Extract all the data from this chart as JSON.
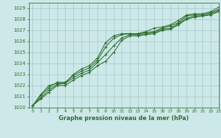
{
  "title": "Graphe pression niveau de la mer (hPa)",
  "bg_color": "#cce8e8",
  "grid_color": "#aacccc",
  "line_color": "#2d6e2d",
  "xlim": [
    -0.5,
    23
  ],
  "ylim": [
    1020,
    1029.5
  ],
  "xticks": [
    0,
    1,
    2,
    3,
    4,
    5,
    6,
    7,
    8,
    9,
    10,
    11,
    12,
    13,
    14,
    15,
    16,
    17,
    18,
    19,
    20,
    21,
    22,
    23
  ],
  "yticks": [
    1020,
    1021,
    1022,
    1023,
    1024,
    1025,
    1026,
    1027,
    1028,
    1029
  ],
  "series": [
    [
      1020.2,
      1020.8,
      1021.4,
      1022.0,
      1022.0,
      1022.5,
      1022.9,
      1023.2,
      1023.8,
      1024.2,
      1025.0,
      1026.1,
      1026.5,
      1026.5,
      1026.6,
      1026.7,
      1027.0,
      1027.1,
      1027.5,
      1028.0,
      1028.2,
      1028.3,
      1028.4,
      1028.7
    ],
    [
      1020.2,
      1020.9,
      1021.6,
      1022.1,
      1022.2,
      1022.7,
      1023.1,
      1023.4,
      1024.1,
      1024.8,
      1025.6,
      1026.3,
      1026.6,
      1026.6,
      1026.7,
      1026.8,
      1027.1,
      1027.2,
      1027.6,
      1028.1,
      1028.3,
      1028.3,
      1028.5,
      1028.8
    ],
    [
      1020.2,
      1021.1,
      1021.8,
      1022.3,
      1022.3,
      1022.9,
      1023.3,
      1023.6,
      1024.3,
      1025.5,
      1026.3,
      1026.6,
      1026.7,
      1026.7,
      1026.8,
      1026.9,
      1027.2,
      1027.4,
      1027.7,
      1028.3,
      1028.4,
      1028.4,
      1028.6,
      1028.9
    ],
    [
      1020.2,
      1021.2,
      1022.0,
      1022.2,
      1022.2,
      1023.0,
      1023.5,
      1023.8,
      1024.5,
      1025.9,
      1026.5,
      1026.7,
      1026.7,
      1026.7,
      1026.9,
      1027.2,
      1027.3,
      1027.5,
      1027.9,
      1028.4,
      1028.5,
      1028.5,
      1028.7,
      1029.1
    ]
  ],
  "figsize": [
    3.2,
    2.0
  ],
  "dpi": 100
}
